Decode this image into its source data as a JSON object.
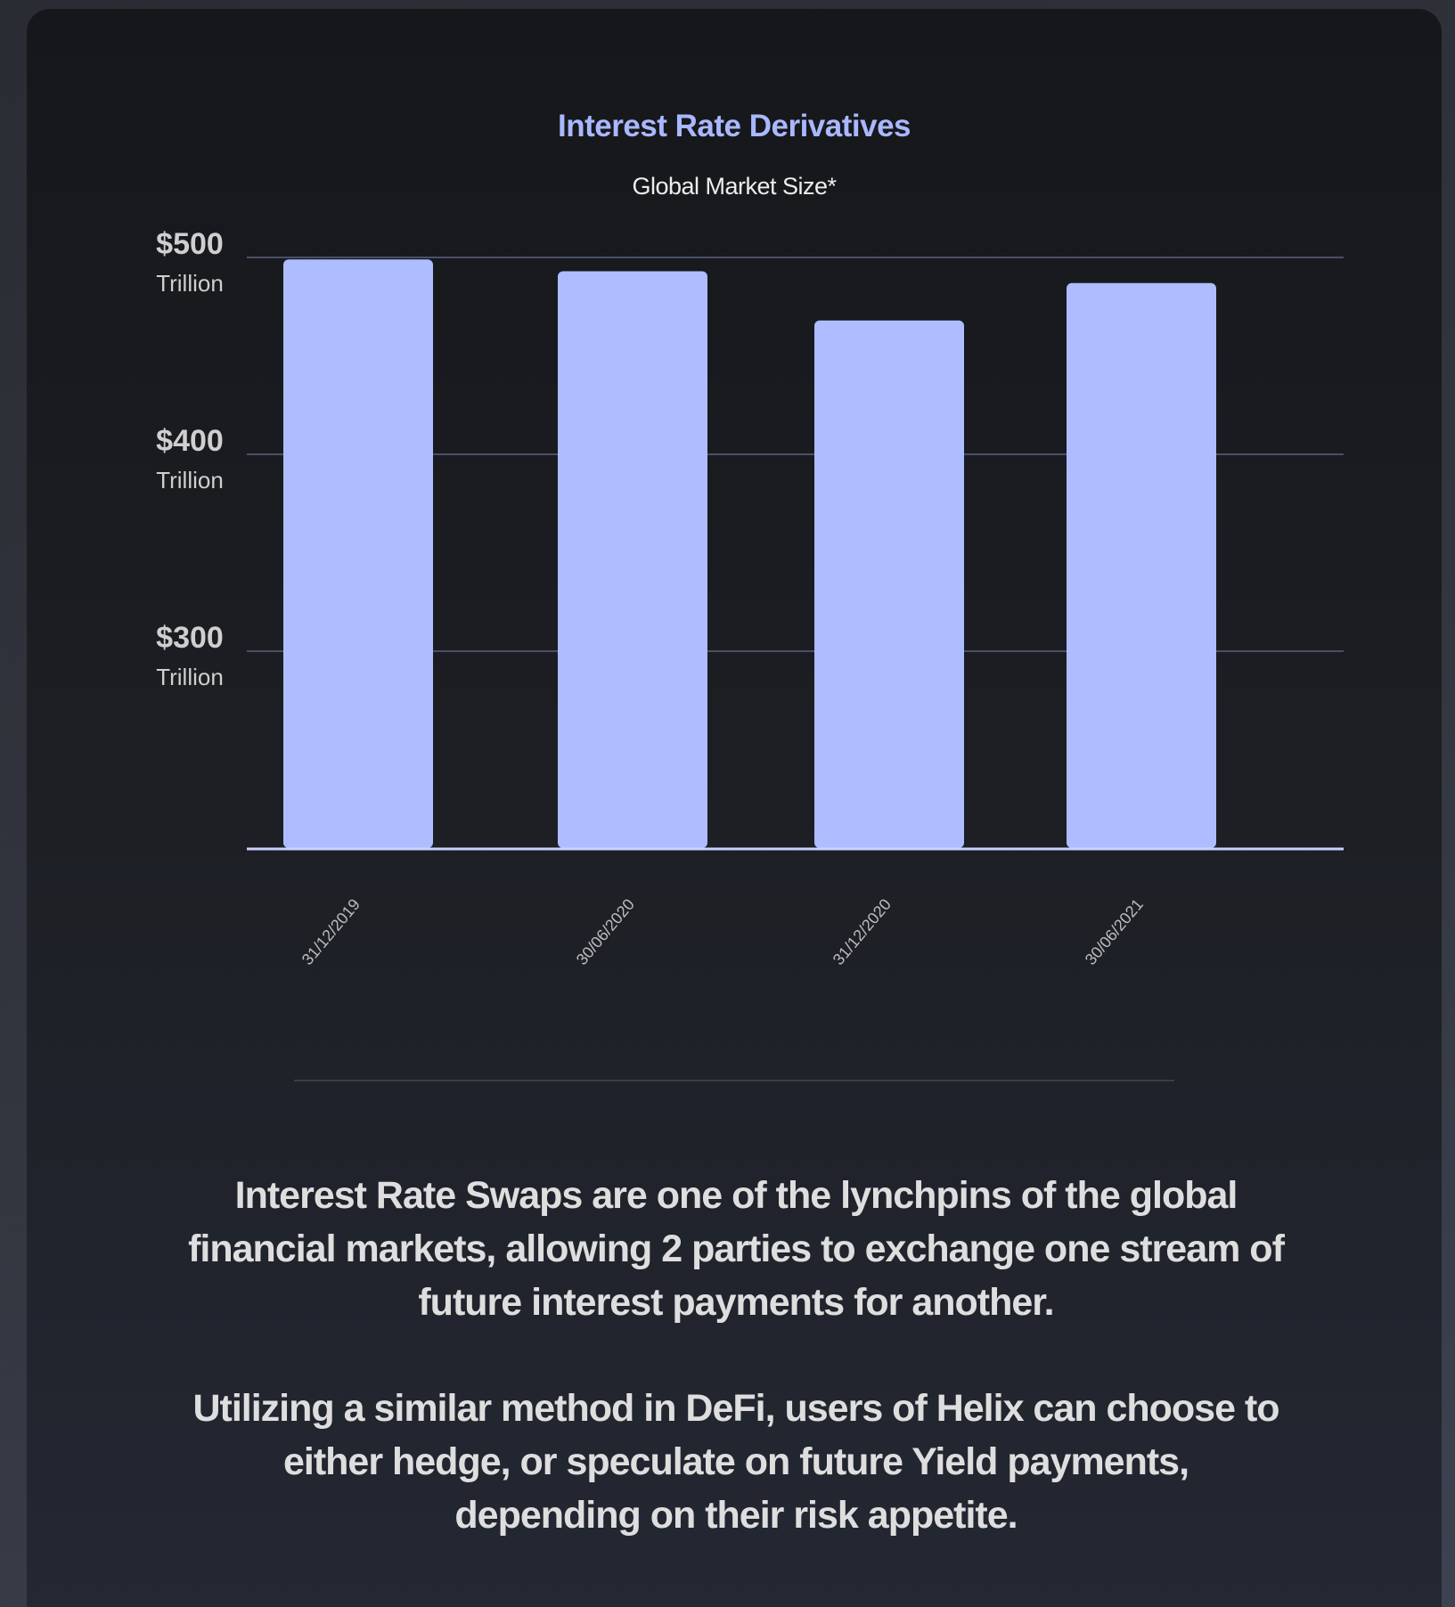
{
  "colors": {
    "bar": "#adbdff",
    "title": "#a9b8ff",
    "grid": "#4a4f66",
    "axis": "#c9d2ff",
    "tick_text": "#cfcfcf"
  },
  "chart_data": {
    "type": "bar",
    "title": "Interest Rate Derivatives",
    "subtitle": "Global Market Size*",
    "categories": [
      "31/12/2019",
      "30/06/2020",
      "31/12/2020",
      "30/06/2021"
    ],
    "values": [
      499,
      493,
      468,
      487
    ],
    "ylim": [
      200,
      500
    ],
    "yticks": [
      {
        "value": 500,
        "main": "$500",
        "sub": "Trillion"
      },
      {
        "value": 400,
        "main": "$400",
        "sub": "Trillion"
      },
      {
        "value": 300,
        "main": "$300",
        "sub": "Trillion"
      }
    ],
    "xlabel": "",
    "ylabel": "",
    "grid": true,
    "legend": "none"
  },
  "text": {
    "paragraph_1": "Interest Rate Swaps are one of the lynchpins of the global financial markets, allowing 2 parties to exchange one stream of future interest payments for another.",
    "paragraph_2": "Utilizing a similar method in DeFi, users of Helix can choose to either hedge, or speculate on future Yield payments, depending on their risk appetite."
  }
}
